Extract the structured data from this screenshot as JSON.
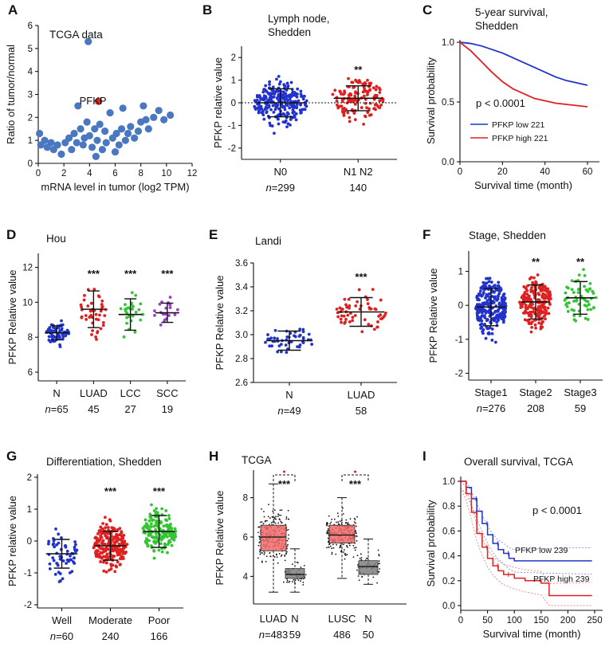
{
  "colors": {
    "blue": "#2233cc",
    "red": "#e02020",
    "green": "#35c435",
    "purple": "#9b3fc9",
    "steel": "#4a78c0",
    "boxred": "#f06a6a",
    "boxgrey": "#7f7f7f",
    "black": "#111111"
  },
  "chart_data": [
    {
      "panel": "A",
      "type": "scatter",
      "title": "TCGA data",
      "xlabel": "mRNA level in tumor (log2 TPM)",
      "ylabel": "Ratio of tumor/normal",
      "xlim": [
        0,
        12
      ],
      "ylim": [
        0,
        6
      ],
      "xticks": [
        "0",
        "2",
        "4",
        "6",
        "8",
        "10",
        "12"
      ],
      "yticks": [
        "0",
        "1",
        "2",
        "3",
        "4",
        "5",
        "6"
      ],
      "highlight": {
        "label": "PFKP",
        "x": 4.7,
        "y": 2.7
      },
      "points": [
        [
          0.1,
          1.3
        ],
        [
          0.2,
          0.8
        ],
        [
          0.5,
          1.0
        ],
        [
          0.7,
          0.7
        ],
        [
          1.0,
          0.9
        ],
        [
          1.2,
          0.6
        ],
        [
          1.5,
          0.8
        ],
        [
          1.8,
          0.4
        ],
        [
          2.1,
          0.9
        ],
        [
          2.4,
          1.1
        ],
        [
          2.6,
          0.6
        ],
        [
          2.8,
          1.3
        ],
        [
          3.0,
          0.9
        ],
        [
          3.1,
          2.5
        ],
        [
          3.3,
          1.5
        ],
        [
          3.5,
          0.8
        ],
        [
          3.6,
          1.1
        ],
        [
          3.8,
          1.8
        ],
        [
          3.9,
          5.3
        ],
        [
          4.0,
          1.2
        ],
        [
          4.2,
          0.7
        ],
        [
          4.4,
          1.5
        ],
        [
          4.5,
          0.3
        ],
        [
          4.6,
          1.0
        ],
        [
          4.8,
          1.7
        ],
        [
          5.0,
          0.6
        ],
        [
          5.2,
          1.4
        ],
        [
          5.3,
          0.9
        ],
        [
          5.6,
          2.2
        ],
        [
          5.8,
          1.1
        ],
        [
          6.0,
          0.5
        ],
        [
          6.1,
          1.3
        ],
        [
          6.3,
          0.8
        ],
        [
          6.5,
          1.5
        ],
        [
          6.6,
          2.4
        ],
        [
          6.8,
          1.0
        ],
        [
          7.0,
          1.3
        ],
        [
          7.2,
          1.6
        ],
        [
          7.5,
          1.1
        ],
        [
          7.8,
          1.4
        ],
        [
          8.0,
          1.8
        ],
        [
          8.2,
          2.5
        ],
        [
          8.4,
          1.9
        ],
        [
          8.6,
          1.5
        ],
        [
          9.0,
          2.0
        ],
        [
          9.4,
          2.3
        ],
        [
          9.8,
          1.9
        ],
        [
          10.3,
          2.1
        ]
      ]
    },
    {
      "panel": "B",
      "type": "scatter",
      "title": "Lymph node,\nShedden",
      "ylabel": "PFKP relative value",
      "ylim": [
        -2.5,
        2.5
      ],
      "yticks": [
        "-2",
        "-1",
        "0",
        "1",
        "2"
      ],
      "categories": [
        "N0",
        "N1 N2"
      ],
      "n_labels": [
        "n=299",
        "140"
      ],
      "significance": [
        "",
        "**"
      ],
      "series": [
        {
          "name": "N0",
          "n": 299,
          "mean": 0.0,
          "sd": 0.62,
          "color": "blue"
        },
        {
          "name": "N1 N2",
          "n": 140,
          "mean": 0.2,
          "sd": 0.55,
          "color": "red"
        }
      ]
    },
    {
      "panel": "C",
      "type": "line",
      "title": "5-year survival,\nShedden",
      "xlabel": "Survival time (month)",
      "ylabel": "Survival probability",
      "xlim": [
        0,
        60
      ],
      "ylim": [
        0,
        1.0
      ],
      "xticks": [
        "0",
        "20",
        "40",
        "60"
      ],
      "yticks": [
        "0.0",
        "0.5",
        "1.0"
      ],
      "pvalue": "p < 0.0001",
      "series": [
        {
          "name": "PFKP low 221",
          "color": "blue",
          "x": [
            0,
            5,
            10,
            15,
            20,
            25,
            30,
            35,
            40,
            45,
            50,
            55,
            60
          ],
          "y": [
            1.0,
            0.99,
            0.97,
            0.94,
            0.91,
            0.87,
            0.83,
            0.79,
            0.75,
            0.71,
            0.68,
            0.66,
            0.64
          ]
        },
        {
          "name": "PFKP high 221",
          "color": "red",
          "x": [
            0,
            5,
            10,
            15,
            20,
            25,
            30,
            35,
            40,
            45,
            50,
            55,
            60
          ],
          "y": [
            1.0,
            0.93,
            0.84,
            0.75,
            0.67,
            0.61,
            0.57,
            0.53,
            0.51,
            0.49,
            0.48,
            0.47,
            0.46
          ]
        }
      ]
    },
    {
      "panel": "D",
      "type": "scatter",
      "title": "Hou",
      "ylabel": "PFKP Relative value",
      "ylim": [
        5.5,
        12.8
      ],
      "yticks": [
        "6",
        "8",
        "10",
        "12"
      ],
      "categories": [
        "N",
        "LUAD",
        "LCC",
        "SCC"
      ],
      "n_labels": [
        "n=65",
        "45",
        "27",
        "19"
      ],
      "significance": [
        "",
        "***",
        "***",
        "***"
      ],
      "series": [
        {
          "name": "N",
          "n": 65,
          "mean": 8.25,
          "sd": 0.4,
          "color": "blue"
        },
        {
          "name": "LUAD",
          "n": 45,
          "mean": 9.6,
          "sd": 1.05,
          "color": "red"
        },
        {
          "name": "LCC",
          "n": 27,
          "mean": 9.3,
          "sd": 0.9,
          "color": "green"
        },
        {
          "name": "SCC",
          "n": 19,
          "mean": 9.4,
          "sd": 0.55,
          "color": "purple"
        }
      ]
    },
    {
      "panel": "E",
      "type": "scatter",
      "title": "Landi",
      "ylabel": "PFKP Relative value",
      "ylim": [
        2.6,
        3.6
      ],
      "yticks": [
        "2.6",
        "2.8",
        "3.0",
        "3.2",
        "3.4",
        "3.6"
      ],
      "categories": [
        "N",
        "LUAD"
      ],
      "n_labels": [
        "n=49",
        "58"
      ],
      "significance": [
        "",
        "***"
      ],
      "series": [
        {
          "name": "N",
          "n": 49,
          "mean": 2.95,
          "sd": 0.08,
          "color": "blue"
        },
        {
          "name": "LUAD",
          "n": 58,
          "mean": 3.19,
          "sd": 0.12,
          "color": "red"
        }
      ]
    },
    {
      "panel": "F",
      "type": "scatter",
      "title": "Stage, Shedden",
      "ylabel": "PFKP Relative value",
      "ylim": [
        -2.2,
        1.6
      ],
      "yticks": [
        "-2",
        "-1",
        "0",
        "1"
      ],
      "categories": [
        "Stage1",
        "Stage2",
        "Stage3"
      ],
      "n_labels": [
        "n=276",
        "208",
        "59"
      ],
      "significance": [
        "",
        "**",
        "**"
      ],
      "series": [
        {
          "name": "Stage1",
          "n": 276,
          "mean": -0.05,
          "sd": 0.55,
          "color": "blue"
        },
        {
          "name": "Stage2",
          "n": 208,
          "mean": 0.1,
          "sd": 0.5,
          "color": "red"
        },
        {
          "name": "Stage3",
          "n": 59,
          "mean": 0.22,
          "sd": 0.48,
          "color": "green"
        }
      ]
    },
    {
      "panel": "G",
      "type": "scatter",
      "title": "Differentiation, Shedden",
      "ylabel": "PFKP relative value",
      "ylim": [
        -2.1,
        2.1
      ],
      "yticks": [
        "-2",
        "-1",
        "0",
        "1",
        "2"
      ],
      "categories": [
        "Well",
        "Moderate",
        "Poor"
      ],
      "n_labels": [
        "n=60",
        "240",
        "166"
      ],
      "significance": [
        "",
        "***",
        "***"
      ],
      "series": [
        {
          "name": "Well",
          "n": 60,
          "mean": -0.4,
          "sd": 0.45,
          "color": "blue"
        },
        {
          "name": "Moderate",
          "n": 240,
          "mean": -0.15,
          "sd": 0.45,
          "color": "red"
        },
        {
          "name": "Poor",
          "n": 166,
          "mean": 0.3,
          "sd": 0.5,
          "color": "green"
        }
      ]
    },
    {
      "panel": "H",
      "type": "box",
      "title": "TCGA",
      "ylabel": "PFKP Relative value",
      "ylim": [
        2.6,
        9.4
      ],
      "yticks": [
        "4",
        "6",
        "8"
      ],
      "categories": [
        "LUAD",
        "N",
        "LUSC",
        "N"
      ],
      "n_labels": [
        "n=483",
        "59",
        "486",
        "50"
      ],
      "significance_pairs": [
        {
          "between": [
            0,
            1
          ],
          "label": "***"
        },
        {
          "between": [
            2,
            3
          ],
          "label": "***"
        }
      ],
      "boxes": [
        {
          "name": "LUAD",
          "n": 483,
          "q1": 5.3,
          "median": 6.0,
          "q3": 6.6,
          "whisk_lo": 3.2,
          "whisk_hi": 8.7,
          "color": "boxred"
        },
        {
          "name": "N",
          "n": 59,
          "q1": 3.9,
          "median": 4.1,
          "q3": 4.4,
          "whisk_lo": 3.2,
          "whisk_hi": 5.4,
          "color": "boxgrey"
        },
        {
          "name": "LUSC",
          "n": 486,
          "q1": 5.7,
          "median": 6.1,
          "q3": 6.6,
          "whisk_lo": 3.9,
          "whisk_hi": 8.0,
          "color": "boxred"
        },
        {
          "name": "N",
          "n": 50,
          "q1": 4.1,
          "median": 4.5,
          "q3": 4.8,
          "whisk_lo": 3.6,
          "whisk_hi": 5.9,
          "color": "boxgrey"
        }
      ]
    },
    {
      "panel": "I",
      "type": "line",
      "title": "Overall survival, TCGA",
      "xlabel": "Survival time (month)",
      "ylabel": "Survival probability",
      "xlim": [
        0,
        250
      ],
      "ylim": [
        0,
        1.0
      ],
      "xticks": [
        "0",
        "50",
        "100",
        "150",
        "200",
        "250"
      ],
      "yticks": [
        "0.0",
        "0.2",
        "0.4",
        "0.6",
        "0.8",
        "1.0"
      ],
      "pvalue": "p < 0.0001",
      "series": [
        {
          "name": "PFKP low 239",
          "color": "blue",
          "x": [
            0,
            10,
            20,
            30,
            40,
            50,
            60,
            70,
            80,
            90,
            100,
            120,
            150,
            180,
            245
          ],
          "y": [
            1.0,
            0.95,
            0.86,
            0.76,
            0.66,
            0.57,
            0.5,
            0.45,
            0.42,
            0.38,
            0.36,
            0.36,
            0.36,
            0.36,
            0.36
          ]
        },
        {
          "name": "PFKP high 239",
          "color": "red",
          "x": [
            0,
            10,
            20,
            30,
            40,
            50,
            60,
            70,
            80,
            100,
            120,
            150,
            165,
            200,
            245
          ],
          "y": [
            1.0,
            0.9,
            0.75,
            0.58,
            0.47,
            0.38,
            0.32,
            0.28,
            0.25,
            0.22,
            0.2,
            0.18,
            0.08,
            0.08,
            0.08
          ]
        }
      ]
    }
  ]
}
